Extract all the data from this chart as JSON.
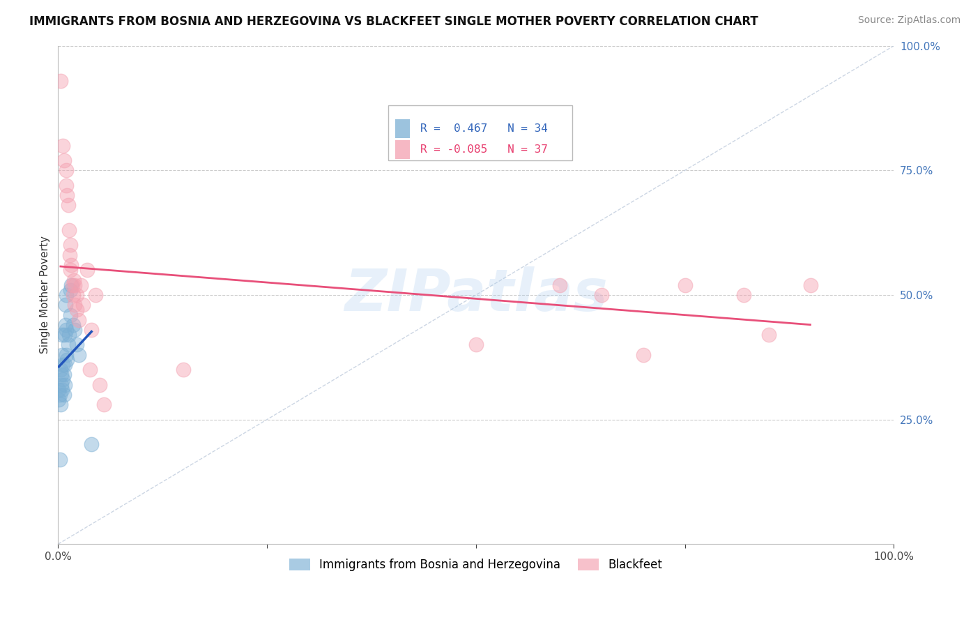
{
  "title": "IMMIGRANTS FROM BOSNIA AND HERZEGOVINA VS BLACKFEET SINGLE MOTHER POVERTY CORRELATION CHART",
  "source": "Source: ZipAtlas.com",
  "ylabel": "Single Mother Poverty",
  "legend_blue_r": "R =  0.467",
  "legend_blue_n": "N = 34",
  "legend_pink_r": "R = -0.085",
  "legend_pink_n": "N = 37",
  "blue_color": "#7BAFD4",
  "pink_color": "#F4A0B0",
  "blue_line_color": "#2255BB",
  "pink_line_color": "#E8507A",
  "diagonal_color": "#C0CCDD",
  "watermark": "ZIPatlas",
  "blue_scatter": [
    [
      0.002,
      0.3
    ],
    [
      0.003,
      0.35
    ],
    [
      0.003,
      0.28
    ],
    [
      0.004,
      0.34
    ],
    [
      0.004,
      0.32
    ],
    [
      0.005,
      0.31
    ],
    [
      0.005,
      0.38
    ],
    [
      0.005,
      0.42
    ],
    [
      0.006,
      0.36
    ],
    [
      0.006,
      0.33
    ],
    [
      0.007,
      0.3
    ],
    [
      0.007,
      0.34
    ],
    [
      0.008,
      0.32
    ],
    [
      0.008,
      0.36
    ],
    [
      0.008,
      0.42
    ],
    [
      0.009,
      0.44
    ],
    [
      0.009,
      0.48
    ],
    [
      0.01,
      0.5
    ],
    [
      0.01,
      0.43
    ],
    [
      0.01,
      0.38
    ],
    [
      0.011,
      0.37
    ],
    [
      0.012,
      0.4
    ],
    [
      0.013,
      0.42
    ],
    [
      0.015,
      0.46
    ],
    [
      0.015,
      0.51
    ],
    [
      0.016,
      0.52
    ],
    [
      0.018,
      0.44
    ],
    [
      0.02,
      0.43
    ],
    [
      0.022,
      0.4
    ],
    [
      0.025,
      0.38
    ],
    [
      0.001,
      0.29
    ],
    [
      0.001,
      0.31
    ],
    [
      0.002,
      0.17
    ],
    [
      0.04,
      0.2
    ]
  ],
  "pink_scatter": [
    [
      0.003,
      0.93
    ],
    [
      0.006,
      0.8
    ],
    [
      0.007,
      0.77
    ],
    [
      0.01,
      0.75
    ],
    [
      0.01,
      0.72
    ],
    [
      0.011,
      0.7
    ],
    [
      0.012,
      0.68
    ],
    [
      0.013,
      0.63
    ],
    [
      0.014,
      0.58
    ],
    [
      0.015,
      0.6
    ],
    [
      0.015,
      0.55
    ],
    [
      0.016,
      0.56
    ],
    [
      0.017,
      0.52
    ],
    [
      0.018,
      0.5
    ],
    [
      0.019,
      0.53
    ],
    [
      0.02,
      0.48
    ],
    [
      0.02,
      0.52
    ],
    [
      0.022,
      0.47
    ],
    [
      0.022,
      0.5
    ],
    [
      0.025,
      0.45
    ],
    [
      0.027,
      0.52
    ],
    [
      0.03,
      0.48
    ],
    [
      0.035,
      0.55
    ],
    [
      0.038,
      0.35
    ],
    [
      0.04,
      0.43
    ],
    [
      0.045,
      0.5
    ],
    [
      0.05,
      0.32
    ],
    [
      0.055,
      0.28
    ],
    [
      0.15,
      0.35
    ],
    [
      0.5,
      0.4
    ],
    [
      0.6,
      0.52
    ],
    [
      0.65,
      0.5
    ],
    [
      0.7,
      0.38
    ],
    [
      0.75,
      0.52
    ],
    [
      0.82,
      0.5
    ],
    [
      0.85,
      0.42
    ],
    [
      0.9,
      0.52
    ]
  ],
  "xlim": [
    0,
    1.0
  ],
  "ylim": [
    0,
    1.0
  ],
  "figsize": [
    14.06,
    8.92
  ],
  "dpi": 100
}
